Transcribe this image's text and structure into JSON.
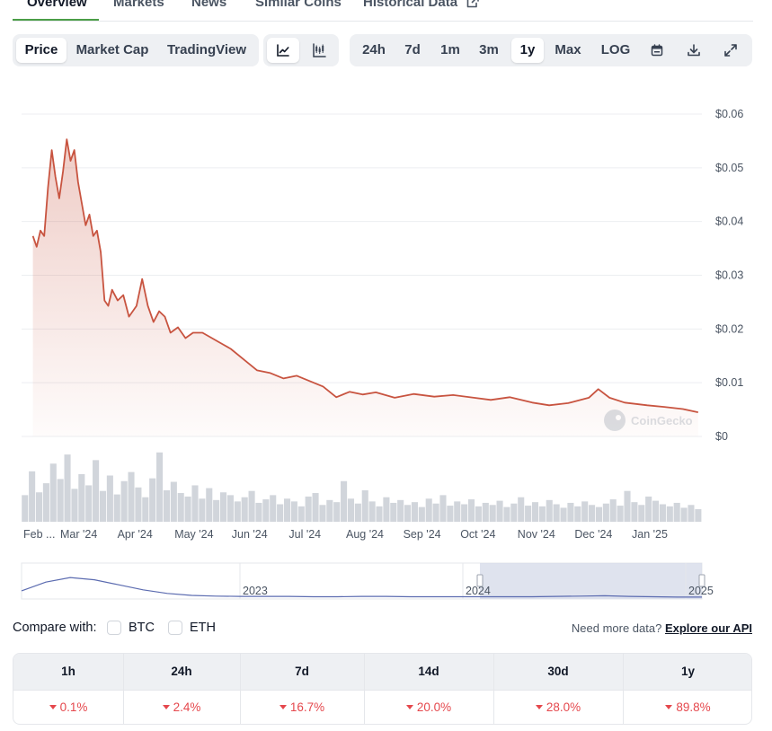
{
  "nav": {
    "tabs": [
      "Overview",
      "Markets",
      "News",
      "Similar Coins",
      "Historical Data"
    ]
  },
  "toolbar": {
    "view_tabs": [
      "Price",
      "Market Cap",
      "TradingView"
    ],
    "chart_types": [
      "line-chart-icon",
      "candlestick-icon"
    ],
    "ranges": [
      "24h",
      "7d",
      "1m",
      "3m",
      "1y",
      "Max",
      "LOG"
    ],
    "active_range": "1y",
    "tools": [
      "calendar-icon",
      "download-icon",
      "expand-icon"
    ]
  },
  "chart_data": {
    "type": "area",
    "ylim": [
      0,
      0.06
    ],
    "y_ticks": [
      "$0.06",
      "$0.05",
      "$0.04",
      "$0.03",
      "$0.02",
      "$0.01",
      "$0"
    ],
    "x_ticks": [
      "Feb ...",
      "Mar '24",
      "Apr '24",
      "May '24",
      "Jun '24",
      "Jul '24",
      "Aug '24",
      "Sep '24",
      "Oct '24",
      "Nov '24",
      "Dec '24",
      "Jan '25"
    ],
    "line_color": "#c85440",
    "series": [
      {
        "x": [
          "2024-02-10",
          "2024-02-12",
          "2024-02-14",
          "2024-02-16",
          "2024-02-18",
          "2024-02-20",
          "2024-02-22",
          "2024-02-24",
          "2024-02-26",
          "2024-02-28",
          "2024-03-01",
          "2024-03-03",
          "2024-03-05",
          "2024-03-07",
          "2024-03-09",
          "2024-03-11",
          "2024-03-13",
          "2024-03-15",
          "2024-03-17",
          "2024-03-19",
          "2024-03-21",
          "2024-03-23",
          "2024-03-26",
          "2024-03-29",
          "2024-04-01",
          "2024-04-05",
          "2024-04-08",
          "2024-04-11",
          "2024-04-14",
          "2024-04-17",
          "2024-04-20",
          "2024-04-23",
          "2024-04-27",
          "2024-05-01",
          "2024-05-05",
          "2024-05-10",
          "2024-05-15",
          "2024-05-20",
          "2024-05-25",
          "2024-06-01",
          "2024-06-08",
          "2024-06-15",
          "2024-06-22",
          "2024-06-29",
          "2024-07-06",
          "2024-07-13",
          "2024-07-20",
          "2024-07-27",
          "2024-08-03",
          "2024-08-10",
          "2024-08-20",
          "2024-08-30",
          "2024-09-10",
          "2024-09-20",
          "2024-10-01",
          "2024-10-10",
          "2024-10-20",
          "2024-11-01",
          "2024-11-10",
          "2024-11-20",
          "2024-12-01",
          "2024-12-06",
          "2024-12-12",
          "2024-12-20",
          "2025-01-01",
          "2025-01-10",
          "2025-01-20",
          "2025-01-28"
        ],
        "values": [
          0.0373,
          0.0353,
          0.0383,
          0.0373,
          0.0463,
          0.0533,
          0.0483,
          0.0443,
          0.0493,
          0.0553,
          0.0513,
          0.0533,
          0.0473,
          0.0433,
          0.0393,
          0.0413,
          0.0373,
          0.0383,
          0.0343,
          0.0253,
          0.0243,
          0.0273,
          0.0253,
          0.0263,
          0.0223,
          0.0243,
          0.0293,
          0.0243,
          0.0213,
          0.0233,
          0.0223,
          0.0193,
          0.0203,
          0.0183,
          0.0193,
          0.0193,
          0.0183,
          0.0173,
          0.0163,
          0.0143,
          0.0123,
          0.0118,
          0.0108,
          0.0113,
          0.0103,
          0.0093,
          0.0073,
          0.0083,
          0.0078,
          0.0082,
          0.0072,
          0.0079,
          0.0074,
          0.0077,
          0.0072,
          0.0068,
          0.0073,
          0.0063,
          0.0058,
          0.0062,
          0.0072,
          0.0088,
          0.0072,
          0.0063,
          0.0058,
          0.0055,
          0.0051,
          0.0045
        ]
      }
    ],
    "watermark": "CoinGecko",
    "volume": {
      "type": "bar",
      "color": "#d1d5db",
      "values": [
        0.38,
        0.72,
        0.42,
        0.55,
        0.83,
        0.61,
        0.96,
        0.47,
        0.68,
        0.52,
        0.88,
        0.44,
        0.66,
        0.39,
        0.58,
        0.71,
        0.49,
        0.35,
        0.62,
        0.99,
        0.45,
        0.57,
        0.41,
        0.36,
        0.52,
        0.33,
        0.48,
        0.31,
        0.42,
        0.38,
        0.29,
        0.35,
        0.44,
        0.27,
        0.32,
        0.38,
        0.25,
        0.33,
        0.29,
        0.22,
        0.36,
        0.41,
        0.24,
        0.31,
        0.28,
        0.58,
        0.33,
        0.26,
        0.45,
        0.29,
        0.22,
        0.35,
        0.27,
        0.31,
        0.24,
        0.28,
        0.21,
        0.33,
        0.26,
        0.38,
        0.23,
        0.29,
        0.25,
        0.32,
        0.22,
        0.27,
        0.24,
        0.3,
        0.21,
        0.26,
        0.35,
        0.23,
        0.28,
        0.22,
        0.31,
        0.25,
        0.2,
        0.27,
        0.22,
        0.29,
        0.24,
        0.21,
        0.26,
        0.32,
        0.23,
        0.44,
        0.28,
        0.24,
        0.36,
        0.3,
        0.25,
        0.22,
        0.27,
        0.2,
        0.24,
        0.18
      ]
    },
    "navigator": {
      "x_ticks": [
        "2023",
        "2024",
        "2025"
      ],
      "values": [
        0.22,
        0.48,
        0.62,
        0.55,
        0.4,
        0.25,
        0.14,
        0.08,
        0.06,
        0.05,
        0.05,
        0.05,
        0.04,
        0.04,
        0.05,
        0.05,
        0.04,
        0.04,
        0.04,
        0.04,
        0.04,
        0.04,
        0.05,
        0.06,
        0.07,
        0.05,
        0.04,
        0.03,
        0.03
      ],
      "selected_range": [
        "2024-02",
        "2025-01"
      ]
    }
  },
  "compare": {
    "label": "Compare with:",
    "options": [
      "BTC",
      "ETH"
    ],
    "api_prompt": "Need more data?",
    "api_link": "Explore our API"
  },
  "changes": {
    "headers": [
      "1h",
      "24h",
      "7d",
      "14d",
      "30d",
      "1y"
    ],
    "values": [
      "0.1%",
      "2.4%",
      "16.7%",
      "20.0%",
      "28.0%",
      "89.8%"
    ]
  },
  "colors": {
    "accent": "#4b9e47",
    "negative": "#e5484d",
    "navigator_line": "#5b6bb0",
    "navigator_selection": "#d7dcea"
  }
}
